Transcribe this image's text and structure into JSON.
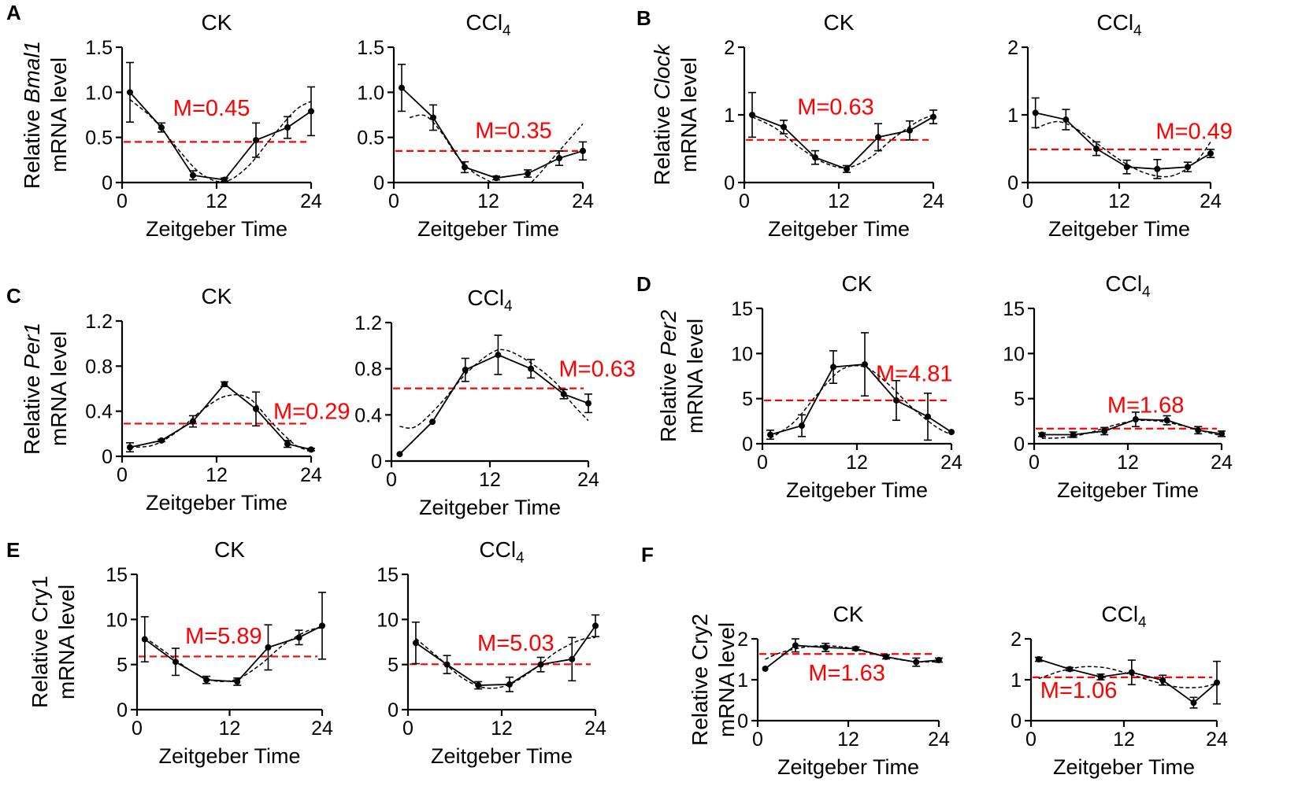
{
  "figure": {
    "ylabel_prefix": "Relative",
    "ylabel_line2": "mRNA level"
  },
  "chart_data": [
    {
      "type": "line",
      "panel": "A",
      "gene": "Bmal1",
      "gene_italic": true,
      "title": "CK",
      "xlabel": "Zeitgeber Time",
      "x": [
        1,
        5,
        9,
        13,
        17,
        21,
        24
      ],
      "values": [
        1.0,
        0.61,
        0.08,
        0.03,
        0.47,
        0.61,
        0.79
      ],
      "error": [
        0.33,
        0.05,
        0.05,
        0.02,
        0.19,
        0.12,
        0.27
      ],
      "fit": [
        [
          1,
          0.92
        ],
        [
          4,
          0.7
        ],
        [
          7,
          0.38
        ],
        [
          10,
          0.1
        ],
        [
          13,
          0.01
        ],
        [
          16,
          0.18
        ],
        [
          19,
          0.5
        ],
        [
          22,
          0.8
        ],
        [
          24,
          0.9
        ]
      ],
      "mesor": 0.45,
      "mesor_label": "M=0.45",
      "ylim": [
        0,
        1.5
      ],
      "yticks": [
        "0",
        "0.5",
        "1.0",
        "1.5"
      ],
      "xticks": [
        "0",
        "12",
        "24"
      ]
    },
    {
      "type": "line",
      "panel": "",
      "gene": "",
      "gene_italic": false,
      "title": "CCl",
      "title_sub": "4",
      "xlabel": "Zeitgeber Time",
      "x": [
        1,
        5,
        9,
        13,
        17,
        21,
        24
      ],
      "values": [
        1.05,
        0.72,
        0.17,
        0.05,
        0.1,
        0.27,
        0.35
      ],
      "error": [
        0.26,
        0.14,
        0.06,
        0.02,
        0.04,
        0.08,
        0.1
      ],
      "fit": [
        [
          2,
          0.72
        ],
        [
          4,
          0.74
        ],
        [
          6,
          0.56
        ],
        [
          8,
          0.3
        ],
        [
          10,
          0.12
        ],
        [
          12,
          0.02
        ],
        [
          14,
          -0.08
        ],
        [
          16,
          -0.1
        ],
        [
          18,
          0.05
        ],
        [
          20,
          0.25
        ],
        [
          22,
          0.45
        ],
        [
          24,
          0.65
        ]
      ],
      "mesor": 0.35,
      "mesor_label": "M=0.35",
      "ylim": [
        0,
        1.5
      ],
      "yticks": [
        "0",
        "0.5",
        "1.0",
        "1.5"
      ],
      "xticks": [
        "0",
        "12",
        "24"
      ]
    },
    {
      "type": "line",
      "panel": "B",
      "gene": "Clock",
      "gene_italic": true,
      "title": "CK",
      "xlabel": "Zeitgeber Time",
      "x": [
        1,
        5,
        9,
        13,
        17,
        21,
        24
      ],
      "values": [
        1.0,
        0.82,
        0.37,
        0.2,
        0.67,
        0.77,
        0.97
      ],
      "error": [
        0.33,
        0.1,
        0.1,
        0.05,
        0.2,
        0.14,
        0.1
      ],
      "fit": [
        [
          1,
          0.97
        ],
        [
          4,
          0.8
        ],
        [
          7,
          0.52
        ],
        [
          10,
          0.3
        ],
        [
          13,
          0.22
        ],
        [
          16,
          0.37
        ],
        [
          19,
          0.66
        ],
        [
          22,
          0.9
        ],
        [
          24,
          1.0
        ]
      ],
      "mesor": 0.63,
      "mesor_label": "M=0.63",
      "ylim": [
        0,
        2
      ],
      "yticks": [
        "0",
        "1",
        "2"
      ],
      "xticks": [
        "0",
        "12",
        "24"
      ]
    },
    {
      "type": "line",
      "panel": "",
      "gene": "",
      "gene_italic": false,
      "title": "CCl",
      "title_sub": "4",
      "xlabel": "Zeitgeber Time",
      "x": [
        1,
        5,
        9,
        13,
        17,
        21,
        24
      ],
      "values": [
        1.03,
        0.93,
        0.5,
        0.23,
        0.2,
        0.23,
        0.43
      ],
      "error": [
        0.22,
        0.15,
        0.1,
        0.1,
        0.14,
        0.07,
        0.06
      ],
      "fit": [
        [
          1,
          0.8
        ],
        [
          4,
          0.9
        ],
        [
          7,
          0.75
        ],
        [
          10,
          0.5
        ],
        [
          13,
          0.27
        ],
        [
          16,
          0.12
        ],
        [
          19,
          0.1
        ],
        [
          22,
          0.3
        ],
        [
          24,
          0.6
        ]
      ],
      "mesor": 0.49,
      "mesor_label": "M=0.49",
      "ylim": [
        0,
        2
      ],
      "yticks": [
        "0",
        "1",
        "2"
      ],
      "xticks": [
        "0",
        "12",
        "24"
      ]
    },
    {
      "type": "line",
      "panel": "C",
      "gene": "Per1",
      "gene_italic": true,
      "title": "CK",
      "xlabel": "Zeitgeber Time",
      "x": [
        1,
        5,
        9,
        13,
        17,
        21,
        24
      ],
      "values": [
        0.08,
        0.14,
        0.31,
        0.64,
        0.42,
        0.11,
        0.06
      ],
      "error": [
        0.04,
        0.01,
        0.05,
        0.02,
        0.15,
        0.03,
        0.01
      ],
      "fit": [
        [
          1,
          0.08
        ],
        [
          4,
          0.1
        ],
        [
          7,
          0.22
        ],
        [
          10,
          0.4
        ],
        [
          13,
          0.53
        ],
        [
          16,
          0.52
        ],
        [
          19,
          0.3
        ],
        [
          22,
          0.1
        ],
        [
          24,
          0.05
        ]
      ],
      "mesor": 0.29,
      "mesor_label": "M=0.29",
      "ylim": [
        0,
        1.2
      ],
      "yticks": [
        "0",
        "0.4",
        "0.8",
        "1.2"
      ],
      "xticks": [
        "0",
        "12",
        "24"
      ]
    },
    {
      "type": "line",
      "panel": "",
      "gene": "",
      "gene_italic": false,
      "title": "CCl",
      "title_sub": "4",
      "xlabel": "Zeitgeber Time",
      "x": [
        1,
        5,
        9,
        13,
        17,
        21,
        24
      ],
      "values": [
        0.06,
        0.34,
        0.79,
        0.92,
        0.8,
        0.58,
        0.5
      ],
      "error": [
        0.0,
        0.0,
        0.1,
        0.17,
        0.08,
        0.04,
        0.08
      ],
      "fit": [
        [
          1,
          0.3
        ],
        [
          3,
          0.3
        ],
        [
          6,
          0.5
        ],
        [
          9,
          0.75
        ],
        [
          12,
          0.93
        ],
        [
          14,
          0.96
        ],
        [
          17,
          0.85
        ],
        [
          20,
          0.68
        ],
        [
          22,
          0.5
        ],
        [
          24,
          0.35
        ]
      ],
      "mesor": 0.63,
      "mesor_label": "M=0.63",
      "ylim": [
        0,
        1.2
      ],
      "yticks": [
        "0",
        "0.4",
        "0.8",
        "1.2"
      ],
      "xticks": [
        "0",
        "12",
        "24"
      ]
    },
    {
      "type": "line",
      "panel": "D",
      "gene": "Per2",
      "gene_italic": true,
      "title": "CK",
      "xlabel": "Zeitgeber Time",
      "x": [
        1,
        5,
        9,
        13,
        17,
        21,
        24
      ],
      "values": [
        1.0,
        2.0,
        8.5,
        8.8,
        4.8,
        3.0,
        1.3
      ],
      "error": [
        0.5,
        1.2,
        1.8,
        3.5,
        2.2,
        2.6,
        0.0
      ],
      "fit": [
        [
          1,
          0.6
        ],
        [
          4,
          2.4
        ],
        [
          7,
          5.5
        ],
        [
          10,
          8.2
        ],
        [
          13,
          8.5
        ],
        [
          16,
          6.6
        ],
        [
          19,
          4.0
        ],
        [
          22,
          1.9
        ],
        [
          24,
          1.0
        ]
      ],
      "mesor": 4.81,
      "mesor_label": "M=4.81",
      "ylim": [
        0,
        15
      ],
      "yticks": [
        "0",
        "5",
        "10",
        "15"
      ],
      "xticks": [
        "0",
        "12",
        "24"
      ]
    },
    {
      "type": "line",
      "panel": "",
      "gene": "",
      "gene_italic": false,
      "title": "CCl",
      "title_sub": "4",
      "xlabel": "Zeitgeber Time",
      "x": [
        1,
        5,
        9,
        13,
        17,
        21,
        24
      ],
      "values": [
        1.0,
        1.0,
        1.4,
        2.7,
        2.6,
        1.5,
        1.1
      ],
      "error": [
        0.2,
        0.3,
        0.4,
        0.8,
        0.5,
        0.4,
        0.3
      ],
      "fit": [
        [
          1,
          0.6
        ],
        [
          4,
          0.7
        ],
        [
          7,
          1.2
        ],
        [
          10,
          2.0
        ],
        [
          13,
          2.55
        ],
        [
          16,
          2.5
        ],
        [
          19,
          2.0
        ],
        [
          22,
          1.3
        ],
        [
          24,
          0.9
        ]
      ],
      "mesor": 1.68,
      "mesor_label": "M=1.68",
      "ylim": [
        0,
        15
      ],
      "yticks": [
        "0",
        "5",
        "10",
        "15"
      ],
      "xticks": [
        "0",
        "12",
        "24"
      ]
    },
    {
      "type": "line",
      "panel": "E",
      "gene": "Cry1",
      "gene_italic": false,
      "title": "CK",
      "xlabel": "Zeitgeber Time",
      "x": [
        1,
        5,
        9,
        13,
        17,
        21,
        24
      ],
      "values": [
        7.8,
        5.3,
        3.3,
        3.1,
        6.9,
        8.0,
        9.3
      ],
      "error": [
        2.5,
        1.5,
        0.4,
        0.4,
        2.5,
        0.8,
        3.7
      ],
      "fit": [
        [
          1,
          8.0
        ],
        [
          4,
          6.2
        ],
        [
          7,
          4.3
        ],
        [
          10,
          3.2
        ],
        [
          13,
          3.4
        ],
        [
          16,
          5.0
        ],
        [
          19,
          7.2
        ],
        [
          22,
          8.7
        ],
        [
          24,
          9.1
        ]
      ],
      "mesor": 5.89,
      "mesor_label": "M=5.89",
      "ylim": [
        0,
        15
      ],
      "yticks": [
        "0",
        "5",
        "10",
        "15"
      ],
      "xticks": [
        "0",
        "12",
        "24"
      ]
    },
    {
      "type": "line",
      "panel": "",
      "gene": "",
      "gene_italic": false,
      "title": "CCl",
      "title_sub": "4",
      "xlabel": "Zeitgeber Time",
      "x": [
        1,
        5,
        9,
        13,
        17,
        21,
        24
      ],
      "values": [
        7.4,
        5.0,
        2.7,
        2.8,
        5.0,
        5.6,
        9.3
      ],
      "error": [
        2.3,
        1.0,
        0.4,
        0.8,
        0.8,
        2.4,
        1.2
      ],
      "fit": [
        [
          1,
          7.9
        ],
        [
          4,
          5.7
        ],
        [
          7,
          3.5
        ],
        [
          10,
          2.4
        ],
        [
          13,
          2.8
        ],
        [
          16,
          4.4
        ],
        [
          19,
          6.4
        ],
        [
          22,
          7.7
        ],
        [
          24,
          8.0
        ]
      ],
      "mesor": 5.03,
      "mesor_label": "M=5.03",
      "ylim": [
        0,
        15
      ],
      "yticks": [
        "0",
        "5",
        "10",
        "15"
      ],
      "xticks": [
        "0",
        "12",
        "24"
      ]
    },
    {
      "type": "line",
      "panel": "F",
      "gene": "Cry2",
      "gene_italic": false,
      "title": "CK",
      "xlabel": "Zeitgeber Time",
      "x": [
        1,
        5,
        9,
        13,
        17,
        21,
        24
      ],
      "values": [
        1.27,
        1.84,
        1.79,
        1.76,
        1.56,
        1.43,
        1.48
      ],
      "error": [
        0.0,
        0.16,
        0.1,
        0.04,
        0.05,
        0.1,
        0.05
      ],
      "fit": [
        [
          1,
          1.5
        ],
        [
          3,
          1.66
        ],
        [
          6,
          1.79
        ],
        [
          9,
          1.83
        ],
        [
          12,
          1.78
        ],
        [
          15,
          1.65
        ],
        [
          18,
          1.52
        ],
        [
          21,
          1.44
        ],
        [
          24,
          1.44
        ]
      ],
      "mesor": 1.63,
      "mesor_label": "M=1.63",
      "ylim": [
        0,
        2
      ],
      "yticks": [
        "0",
        "1",
        "2"
      ],
      "xticks": [
        "0",
        "12",
        "24"
      ]
    },
    {
      "type": "line",
      "panel": "",
      "gene": "",
      "gene_italic": false,
      "title": "CCl",
      "title_sub": "4",
      "xlabel": "Zeitgeber Time",
      "x": [
        1,
        5,
        9,
        13,
        17,
        21,
        24
      ],
      "values": [
        1.5,
        1.26,
        1.07,
        1.18,
        0.99,
        0.44,
        0.93
      ],
      "error": [
        0.05,
        0.04,
        0.07,
        0.3,
        0.12,
        0.13,
        0.52
      ],
      "fit": [
        [
          1,
          1.03
        ],
        [
          4,
          1.22
        ],
        [
          7,
          1.32
        ],
        [
          10,
          1.28
        ],
        [
          13,
          1.12
        ],
        [
          16,
          0.95
        ],
        [
          19,
          0.82
        ],
        [
          22,
          0.82
        ],
        [
          24,
          0.92
        ]
      ],
      "mesor": 1.06,
      "mesor_label": "M=1.06",
      "ylim": [
        0,
        2
      ],
      "yticks": [
        "0",
        "1",
        "2"
      ],
      "xticks": [
        "0",
        "12",
        "24"
      ]
    }
  ]
}
